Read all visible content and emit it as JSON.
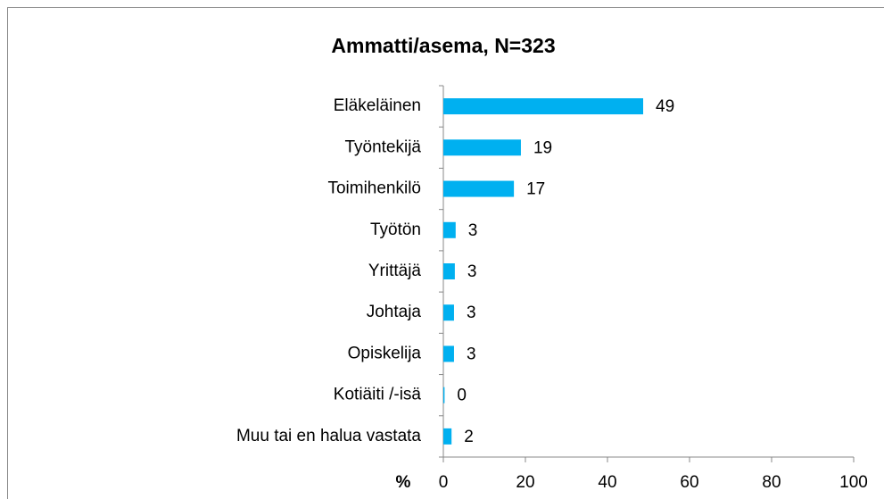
{
  "chart_data": {
    "type": "bar",
    "orientation": "horizontal",
    "title": "Ammatti/asema, N=323",
    "categories": [
      "Eläkeläinen",
      "Työntekijä",
      "Toimihenkilö",
      "Työtön",
      "Yrittäjä",
      "Johtaja",
      "Opiskelija",
      "Kotiäiti /-isä",
      "Muu tai en halua vastata"
    ],
    "values": [
      48.7,
      18.9,
      17.2,
      3.0,
      2.8,
      2.6,
      2.6,
      0.3,
      2.0
    ],
    "value_labels": [
      "49",
      "19",
      "17",
      "3",
      "3",
      "3",
      "3",
      "0",
      "2"
    ],
    "color": "#00b0f0",
    "x_label": "%",
    "xlim": [
      0,
      100
    ],
    "xticks": [
      0,
      20,
      40,
      60,
      80,
      100
    ],
    "grid": false
  }
}
